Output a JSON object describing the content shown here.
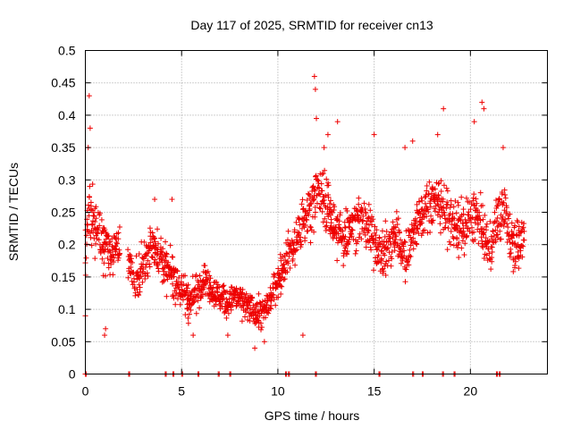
{
  "chart_data": {
    "type": "scatter",
    "title": "Day 117 of 2025, SRMTID for receiver cn13",
    "xlabel": "GPS time / hours",
    "ylabel": "SRMTID / TECUs",
    "xlim": [
      0,
      24
    ],
    "ylim": [
      0,
      0.5
    ],
    "x_ticks": [
      0,
      5,
      10,
      15,
      20
    ],
    "x_tick_labels": [
      "0",
      "5",
      "10",
      "15",
      "20"
    ],
    "y_ticks": [
      0,
      0.05,
      0.1,
      0.15,
      0.2,
      0.25,
      0.3,
      0.35,
      0.4,
      0.45,
      0.5
    ],
    "y_tick_labels": [
      "0",
      "0.05",
      "0.1",
      "0.15",
      "0.2",
      "0.25",
      "0.3",
      "0.35",
      "0.4",
      "0.45",
      "0.5"
    ],
    "grid": true,
    "marker": "+",
    "color": "#ee0000",
    "series": [
      {
        "name": "SRMTID",
        "trend": [
          [
            0.0,
            0.2,
            0.06
          ],
          [
            0.3,
            0.25,
            0.07
          ],
          [
            0.6,
            0.22,
            0.06
          ],
          [
            1.0,
            0.2,
            0.06
          ],
          [
            1.3,
            0.18,
            0.05
          ],
          [
            1.6,
            0.2,
            0.05
          ],
          [
            2.3,
            0.16,
            0.04
          ],
          [
            2.7,
            0.15,
            0.04
          ],
          [
            3.0,
            0.17,
            0.04
          ],
          [
            3.4,
            0.2,
            0.04
          ],
          [
            3.8,
            0.19,
            0.04
          ],
          [
            4.2,
            0.16,
            0.04
          ],
          [
            4.6,
            0.15,
            0.04
          ],
          [
            5.0,
            0.13,
            0.04
          ],
          [
            5.4,
            0.11,
            0.04
          ],
          [
            5.8,
            0.13,
            0.04
          ],
          [
            6.2,
            0.15,
            0.03
          ],
          [
            6.6,
            0.13,
            0.03
          ],
          [
            7.0,
            0.12,
            0.03
          ],
          [
            7.4,
            0.11,
            0.03
          ],
          [
            7.8,
            0.12,
            0.03
          ],
          [
            8.2,
            0.11,
            0.03
          ],
          [
            8.6,
            0.1,
            0.03
          ],
          [
            9.0,
            0.09,
            0.03
          ],
          [
            9.4,
            0.1,
            0.03
          ],
          [
            9.8,
            0.13,
            0.03
          ],
          [
            10.2,
            0.16,
            0.04
          ],
          [
            10.6,
            0.19,
            0.04
          ],
          [
            11.0,
            0.21,
            0.05
          ],
          [
            11.4,
            0.24,
            0.06
          ],
          [
            11.8,
            0.27,
            0.06
          ],
          [
            12.2,
            0.28,
            0.06
          ],
          [
            12.6,
            0.26,
            0.06
          ],
          [
            13.0,
            0.22,
            0.05
          ],
          [
            13.4,
            0.21,
            0.05
          ],
          [
            13.8,
            0.23,
            0.05
          ],
          [
            14.2,
            0.24,
            0.05
          ],
          [
            14.6,
            0.23,
            0.05
          ],
          [
            15.0,
            0.21,
            0.05
          ],
          [
            15.4,
            0.18,
            0.05
          ],
          [
            15.8,
            0.2,
            0.05
          ],
          [
            16.2,
            0.22,
            0.05
          ],
          [
            16.6,
            0.18,
            0.05
          ],
          [
            17.0,
            0.22,
            0.05
          ],
          [
            17.4,
            0.24,
            0.05
          ],
          [
            17.8,
            0.26,
            0.05
          ],
          [
            18.2,
            0.27,
            0.05
          ],
          [
            18.6,
            0.26,
            0.05
          ],
          [
            19.0,
            0.24,
            0.05
          ],
          [
            19.4,
            0.22,
            0.05
          ],
          [
            19.8,
            0.23,
            0.05
          ],
          [
            20.2,
            0.25,
            0.05
          ],
          [
            20.6,
            0.22,
            0.05
          ],
          [
            21.0,
            0.19,
            0.05
          ],
          [
            21.4,
            0.24,
            0.05
          ],
          [
            21.8,
            0.25,
            0.05
          ],
          [
            22.2,
            0.2,
            0.05
          ],
          [
            22.6,
            0.2,
            0.04
          ],
          [
            22.8,
            0.21,
            0.04
          ]
        ],
        "peaks": [
          [
            0.2,
            0.43
          ],
          [
            0.25,
            0.38
          ],
          [
            0.15,
            0.35
          ],
          [
            1.0,
            0.06
          ],
          [
            1.05,
            0.07
          ],
          [
            0.0,
            0.09
          ],
          [
            11.9,
            0.46
          ],
          [
            11.95,
            0.44
          ],
          [
            12.0,
            0.395
          ],
          [
            12.6,
            0.37
          ],
          [
            13.1,
            0.39
          ],
          [
            15.0,
            0.37
          ],
          [
            18.6,
            0.41
          ],
          [
            18.3,
            0.37
          ],
          [
            20.2,
            0.39
          ],
          [
            20.6,
            0.42
          ],
          [
            20.7,
            0.41
          ],
          [
            21.7,
            0.35
          ],
          [
            17.0,
            0.36
          ],
          [
            16.6,
            0.35
          ],
          [
            8.8,
            0.04
          ],
          [
            9.3,
            0.05
          ],
          [
            11.3,
            0.06
          ],
          [
            7.4,
            0.06
          ],
          [
            5.6,
            0.06
          ],
          [
            4.5,
            0.27
          ],
          [
            3.6,
            0.27
          ],
          [
            12.4,
            0.35
          ]
        ],
        "zero_points": [
          0.0,
          2.25,
          4.15,
          4.55,
          5.0,
          5.85,
          6.9,
          7.5,
          10.4,
          10.55,
          11.95,
          15.25,
          17.0,
          17.5,
          18.55,
          19.15,
          21.35,
          21.5
        ]
      }
    ]
  }
}
